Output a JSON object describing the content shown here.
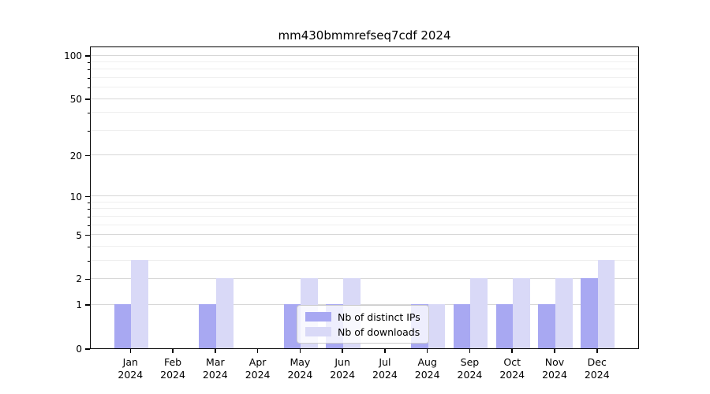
{
  "chart_data": {
    "type": "bar",
    "title": "mm430bmmrefseq7cdf 2024",
    "categories": [
      "Jan",
      "Feb",
      "Mar",
      "Apr",
      "May",
      "Jun",
      "Jul",
      "Aug",
      "Sep",
      "Oct",
      "Nov",
      "Dec"
    ],
    "x_tick_year_line": "2024",
    "series": [
      {
        "name": "Nb of distinct IPs",
        "color": "#a8a8f2",
        "values": [
          1,
          0,
          1,
          0,
          1,
          1,
          0,
          1,
          1,
          1,
          1,
          2
        ]
      },
      {
        "name": "Nb of downloads",
        "color": "#d9d9f7",
        "values": [
          3,
          0,
          2,
          0,
          2,
          2,
          0,
          1,
          2,
          2,
          2,
          3
        ]
      }
    ],
    "xlabel": "",
    "ylabel": "",
    "yscale": "log1p",
    "ylim": [
      0,
      116
    ],
    "yticks_major": [
      0,
      1,
      2,
      5,
      10,
      20,
      50,
      100
    ],
    "yticks_minor": [
      3,
      4,
      6,
      7,
      8,
      9,
      30,
      40,
      60,
      70,
      80,
      90
    ],
    "grid": true,
    "legend_position": "lower center"
  },
  "colors": {
    "grid_major": "#d7d7d7",
    "grid_minor": "#efefef",
    "axis": "#000000",
    "background": "#ffffff"
  }
}
